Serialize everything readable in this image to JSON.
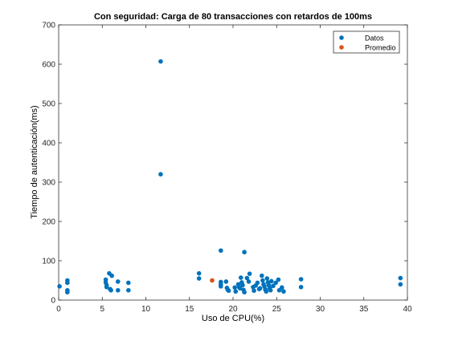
{
  "chart_data": {
    "type": "scatter",
    "title": "Con seguridad: Carga de 80 transacciones con retardos de 100ms",
    "xlabel": "Uso de CPU(%)",
    "ylabel": "Tiempo de autenticación(ms)",
    "xlim": [
      0,
      40
    ],
    "ylim": [
      0,
      700
    ],
    "xticks": [
      0,
      5,
      10,
      15,
      20,
      25,
      30,
      35,
      40
    ],
    "yticks": [
      0,
      100,
      200,
      300,
      400,
      500,
      600,
      700
    ],
    "grid": false,
    "legend_position": "top-right",
    "series": [
      {
        "name": "Datos",
        "color": "#0072BD",
        "points": [
          [
            0.1,
            35
          ],
          [
            1.0,
            50
          ],
          [
            1.0,
            44
          ],
          [
            1.0,
            25
          ],
          [
            1.0,
            20
          ],
          [
            5.4,
            52
          ],
          [
            5.4,
            45
          ],
          [
            5.5,
            38
          ],
          [
            5.5,
            33
          ],
          [
            5.8,
            68
          ],
          [
            5.9,
            28
          ],
          [
            6.0,
            25
          ],
          [
            6.1,
            62
          ],
          [
            6.8,
            47
          ],
          [
            6.8,
            25
          ],
          [
            8.0,
            44
          ],
          [
            8.0,
            25
          ],
          [
            11.7,
            607
          ],
          [
            11.7,
            320
          ],
          [
            16.1,
            68
          ],
          [
            16.1,
            55
          ],
          [
            18.6,
            126
          ],
          [
            18.6,
            46
          ],
          [
            18.6,
            40
          ],
          [
            18.6,
            35
          ],
          [
            19.2,
            47
          ],
          [
            19.3,
            31
          ],
          [
            19.4,
            26
          ],
          [
            19.5,
            24
          ],
          [
            20.2,
            32
          ],
          [
            20.3,
            22
          ],
          [
            20.6,
            40
          ],
          [
            20.7,
            33
          ],
          [
            20.8,
            30
          ],
          [
            20.9,
            57
          ],
          [
            21.0,
            45
          ],
          [
            21.1,
            38
          ],
          [
            21.2,
            26
          ],
          [
            21.3,
            20
          ],
          [
            21.3,
            122
          ],
          [
            21.6,
            56
          ],
          [
            21.8,
            47
          ],
          [
            21.9,
            67
          ],
          [
            22.3,
            33
          ],
          [
            22.4,
            24
          ],
          [
            22.6,
            37
          ],
          [
            22.8,
            44
          ],
          [
            23.0,
            28
          ],
          [
            23.1,
            30
          ],
          [
            23.3,
            62
          ],
          [
            23.4,
            50
          ],
          [
            23.5,
            40
          ],
          [
            23.6,
            35
          ],
          [
            23.7,
            27
          ],
          [
            23.8,
            22
          ],
          [
            23.9,
            55
          ],
          [
            24.0,
            45
          ],
          [
            24.1,
            38
          ],
          [
            24.2,
            30
          ],
          [
            24.3,
            25
          ],
          [
            24.4,
            48
          ],
          [
            24.6,
            36
          ],
          [
            24.9,
            44
          ],
          [
            25.2,
            52
          ],
          [
            25.3,
            25
          ],
          [
            25.6,
            32
          ],
          [
            25.8,
            22
          ],
          [
            27.8,
            53
          ],
          [
            27.8,
            33
          ],
          [
            39.2,
            56
          ],
          [
            39.2,
            40
          ]
        ]
      },
      {
        "name": "Promedio",
        "color": "#D95319",
        "points": [
          [
            17.6,
            50
          ]
        ]
      }
    ]
  }
}
